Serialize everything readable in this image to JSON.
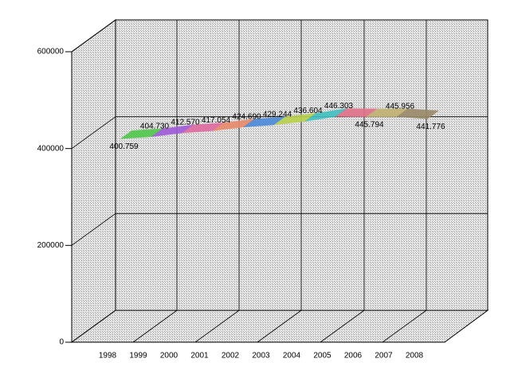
{
  "chart_data": {
    "type": "line3d",
    "categories": [
      "1998",
      "1999",
      "2000",
      "2001",
      "2002",
      "2003",
      "2004",
      "2005",
      "2006",
      "2007",
      "2008"
    ],
    "values": [
      400759,
      404730,
      412570,
      417054,
      424690,
      429244,
      436604,
      446303,
      445794,
      445956,
      441776
    ],
    "value_labels": [
      "400.759",
      "404.730",
      "412.570",
      "417.054",
      "424.690",
      "429.244",
      "436.604",
      "446.303",
      "445.794",
      "445.956",
      "441.776"
    ],
    "segment_colors": [
      "#4fc84a",
      "#a05ad8",
      "#e06aa0",
      "#e88a6a",
      "#4a8ad8",
      "#b8d04a",
      "#40c0c0",
      "#e0708a",
      "#c0b070",
      "#9a8a6a"
    ],
    "ylim": [
      0,
      600000
    ],
    "yticks": [
      0,
      200000,
      400000,
      600000
    ],
    "grid": true
  }
}
